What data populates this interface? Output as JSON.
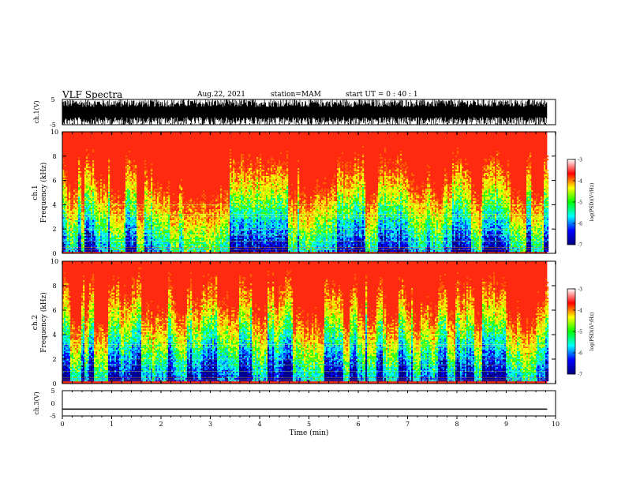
{
  "header": {
    "title": "VLF Spectra",
    "date": "Aug.22, 2021",
    "station": "station=MAM",
    "start": "start UT = 0 : 40 : 1"
  },
  "chart_data": [
    {
      "type": "line",
      "panel": "ch1 waveform",
      "ylabel": "ch.1(V)",
      "ylim": [
        -5,
        5
      ],
      "yticks": [
        "5",
        "-5"
      ],
      "xlim": [
        0,
        10
      ],
      "data_extent_min": 9.83,
      "description_fill": "dense noisy waveform, black"
    },
    {
      "type": "heatmap",
      "panel": "ch1 spectrogram",
      "ylabel_top": "ch.1",
      "ylabel": "Frequency (kHz)",
      "ylim": [
        0,
        10
      ],
      "yticks": [
        "0",
        "2",
        "4",
        "6",
        "8",
        "10"
      ],
      "xlim": [
        0,
        10
      ],
      "colorbar": {
        "label": "log(PSD)(V²/Hz)",
        "range": [
          -7,
          -3
        ],
        "ticks": [
          "-3",
          "-4",
          "-5",
          "-6",
          "-7"
        ]
      },
      "colormap": [
        "#000080",
        "#0000ff",
        "#00ffff",
        "#00ff00",
        "#ffff00",
        "#ff0000",
        "#ffffff"
      ]
    },
    {
      "type": "heatmap",
      "panel": "ch2 spectrogram",
      "ylabel_top": "ch.2",
      "ylabel": "Frequency (kHz)",
      "ylim": [
        0,
        10
      ],
      "yticks": [
        "0",
        "2",
        "4",
        "6",
        "8",
        "10"
      ],
      "xlim": [
        0,
        10
      ],
      "colorbar": {
        "label": "log(PSD)(V²/Hz)",
        "range": [
          -7,
          -3
        ],
        "ticks": [
          "-3",
          "-4",
          "-5",
          "-6",
          "-7"
        ]
      },
      "colormap": [
        "#000080",
        "#0000ff",
        "#00ffff",
        "#00ff00",
        "#ffff00",
        "#ff0000",
        "#ffffff"
      ]
    },
    {
      "type": "line",
      "panel": "ch3 waveform",
      "ylabel": "ch.3(V)",
      "ylim": [
        -5,
        5
      ],
      "yticks": [
        "5",
        "0",
        "-5"
      ],
      "xlim": [
        0,
        10
      ],
      "xticks": [
        "0",
        "1",
        "2",
        "3",
        "4",
        "5",
        "6",
        "7",
        "8",
        "9",
        "10"
      ],
      "xlabel": "Time (min)",
      "x": [
        0,
        9.83
      ],
      "y": [
        -2.3,
        -2.3
      ]
    }
  ]
}
